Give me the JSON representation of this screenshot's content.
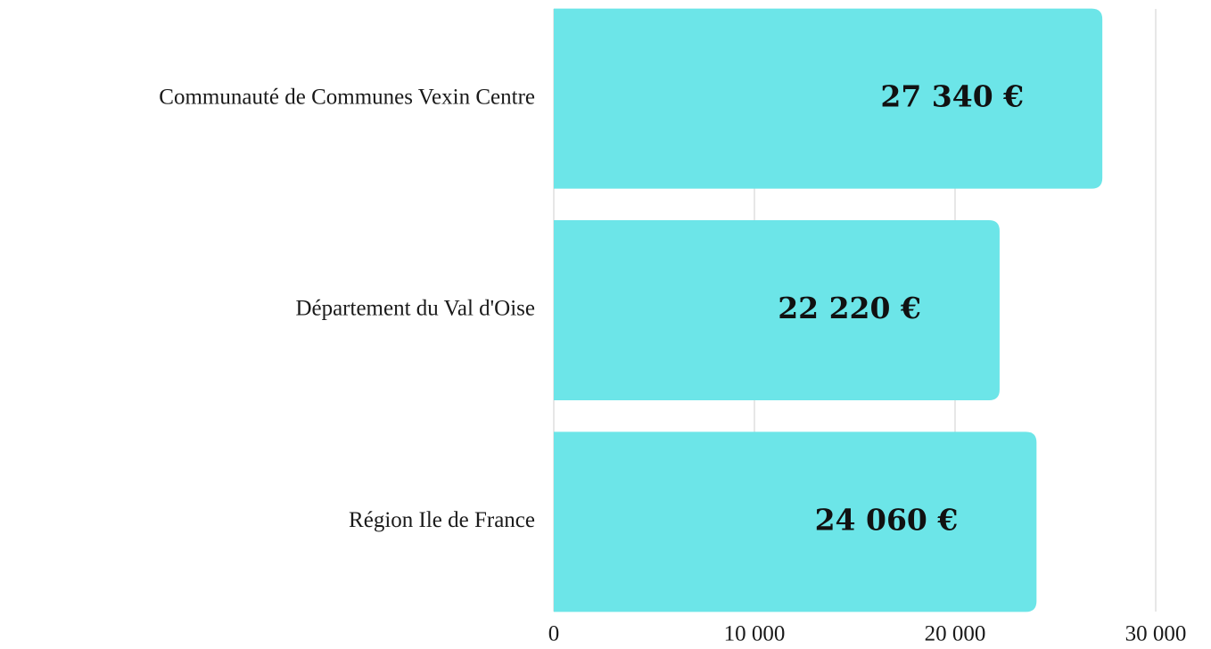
{
  "chart_data": {
    "type": "hbar",
    "categories": [
      "Communauté de Communes Vexin Centre",
      "Département du Val d'Oise",
      "Région Ile de France"
    ],
    "values": [
      27340,
      22220,
      24060
    ],
    "value_labels": [
      "27 340 €",
      "22 220 €",
      "24 060 €"
    ],
    "color": "#6ce5e8",
    "xlim": [
      0,
      30000
    ],
    "xticks": [
      0,
      {
        "value": 10000,
        "label": "10 000"
      },
      {
        "value": 20000,
        "label": "20 000"
      },
      {
        "value": 30000,
        "label": "30 000"
      }
    ],
    "grid": true
  }
}
